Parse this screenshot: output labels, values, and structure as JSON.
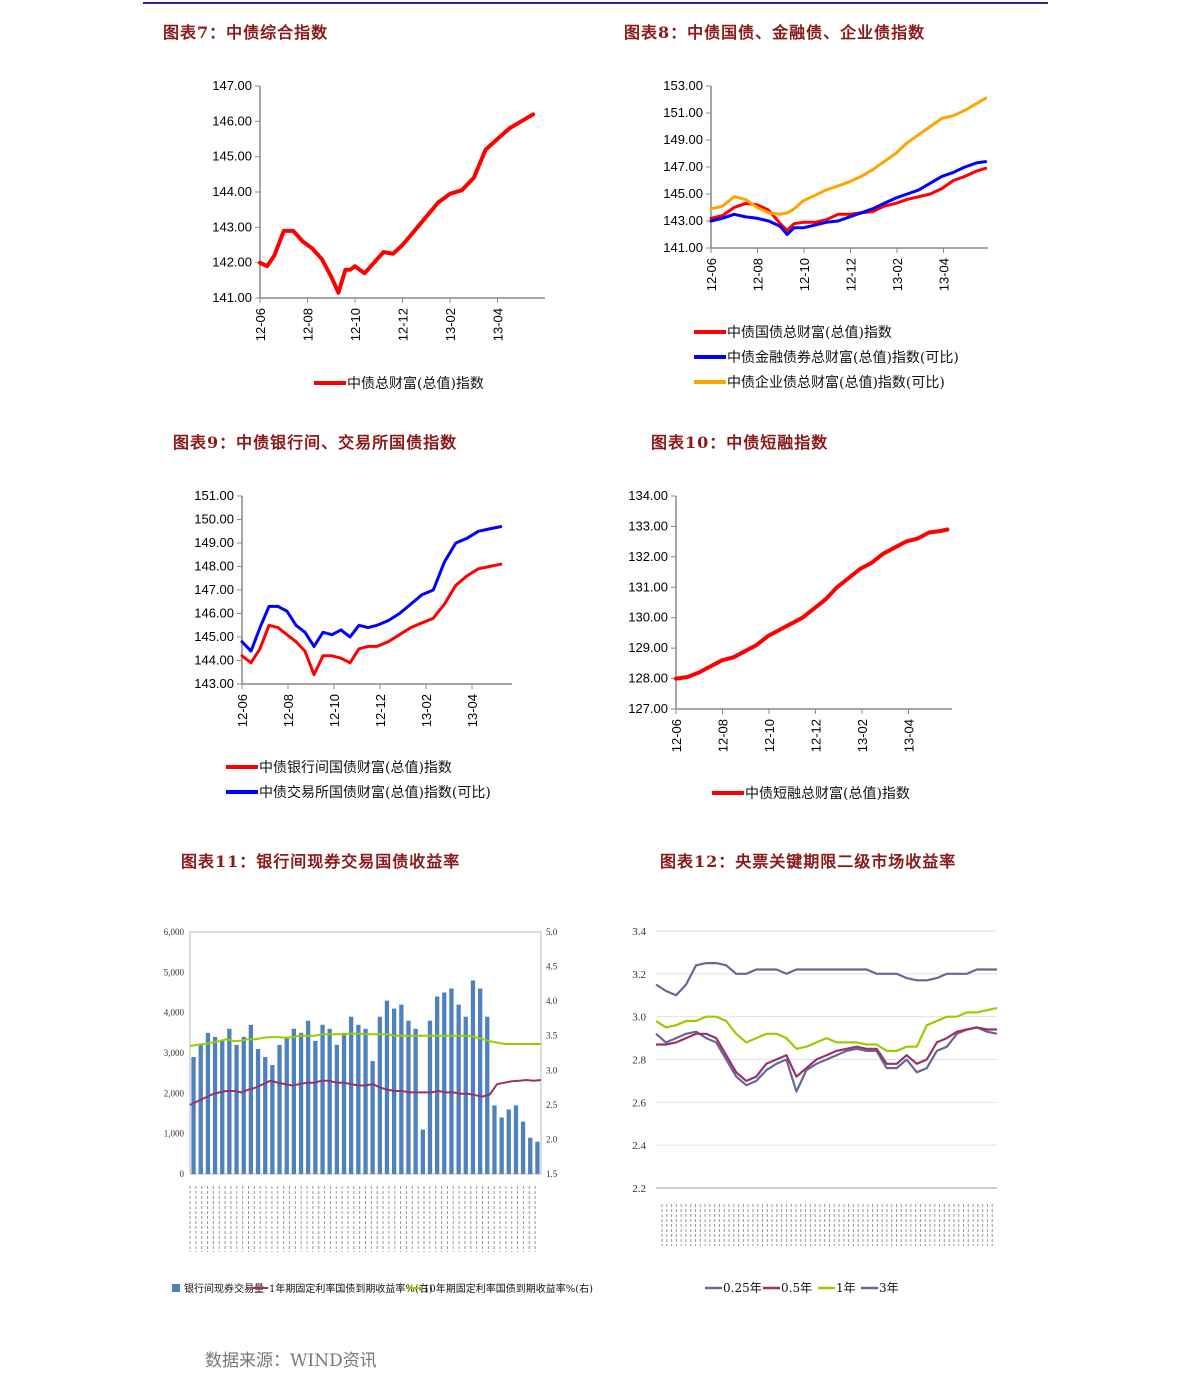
{
  "titles": {
    "c7": "图表7：中债综合指数",
    "c8": "图表8：中债国债、金融债、企业债指数",
    "c9": "图表9：中债银行间、交易所国债指数",
    "c10": "图表10：中债短融指数",
    "c11": "图表11：银行间现券交易国债收益率",
    "c12": "图表12：央票关键期限二级市场收益率"
  },
  "source": "数据来源：WIND资讯",
  "colors": {
    "red": "#ff0000",
    "blue": "#0000ff",
    "orange": "#ffa500",
    "bar": "#4f81bd",
    "maroon": "#993366",
    "lime": "#99cc00",
    "navy": "#666699",
    "title": "#8b1a1a"
  },
  "chart_data": [
    {
      "id": "c7",
      "type": "line",
      "title": "图表7：中债综合指数",
      "x_ticks": [
        "12-06",
        "12-08",
        "12-10",
        "12-12",
        "13-02",
        "13-04"
      ],
      "y_ticks": [
        "141.00",
        "142.00",
        "143.00",
        "144.00",
        "145.00",
        "146.00",
        "147.00"
      ],
      "ylim": [
        141,
        147
      ],
      "series": [
        {
          "name": "中债总财富(总值)指数",
          "color": "#ff0000",
          "x": [
            0.0,
            0.3,
            0.6,
            1.0,
            1.4,
            1.8,
            2.2,
            2.6,
            3.0,
            3.3,
            3.6,
            3.8,
            4.0,
            4.4,
            4.8,
            5.2,
            5.6,
            6.0,
            6.5,
            7.0,
            7.5,
            8.0,
            8.5,
            9.0,
            9.5,
            10.0,
            10.5,
            11.0,
            11.5
          ],
          "values": [
            142.0,
            141.9,
            142.2,
            142.9,
            142.9,
            142.6,
            142.4,
            142.1,
            141.6,
            141.15,
            141.8,
            141.8,
            141.9,
            141.7,
            142.0,
            142.3,
            142.25,
            142.5,
            142.9,
            143.3,
            143.7,
            143.95,
            144.05,
            144.4,
            145.2,
            145.5,
            145.8,
            146.0,
            146.2
          ]
        }
      ]
    },
    {
      "id": "c8",
      "type": "line",
      "title": "图表8：中债国债、金融债、企业债指数",
      "x_ticks": [
        "12-06",
        "12-08",
        "12-10",
        "12-12",
        "13-02",
        "13-04"
      ],
      "y_ticks": [
        "141.00",
        "143.00",
        "145.00",
        "147.00",
        "149.00",
        "151.00",
        "153.00"
      ],
      "ylim": [
        141,
        153
      ],
      "series": [
        {
          "name": "中债国债总财富(总值)指数",
          "color": "#ff0000",
          "x": [
            0,
            0.5,
            1,
            1.5,
            2,
            2.5,
            3,
            3.3,
            3.6,
            4,
            4.5,
            5,
            5.5,
            6,
            6.5,
            7,
            7.5,
            8,
            8.5,
            9,
            9.5,
            10,
            10.5,
            11,
            11.5,
            11.9
          ],
          "values": [
            143.2,
            143.4,
            144.0,
            144.3,
            144.2,
            143.8,
            142.8,
            142.3,
            142.8,
            142.9,
            142.9,
            143.1,
            143.5,
            143.5,
            143.6,
            143.7,
            144.1,
            144.3,
            144.6,
            144.8,
            145.0,
            145.4,
            146.0,
            146.3,
            146.7,
            146.9
          ]
        },
        {
          "name": "中债金融债券总财富(总值)指数(可比)",
          "color": "#0000ff",
          "x": [
            0,
            0.5,
            1,
            1.5,
            2,
            2.5,
            3,
            3.3,
            3.6,
            4,
            4.5,
            5,
            5.5,
            6,
            6.5,
            7,
            7.5,
            8,
            8.5,
            9,
            9.5,
            10,
            10.5,
            11,
            11.5,
            11.9
          ],
          "values": [
            143.0,
            143.2,
            143.5,
            143.3,
            143.2,
            143.0,
            142.6,
            142.0,
            142.5,
            142.5,
            142.7,
            142.9,
            143.0,
            143.3,
            143.6,
            143.9,
            144.3,
            144.7,
            145.0,
            145.3,
            145.8,
            146.3,
            146.6,
            147.0,
            147.3,
            147.4
          ]
        },
        {
          "name": "中债企业债总财富(总值)指数(可比)",
          "color": "#ffa500",
          "x": [
            0,
            0.5,
            1,
            1.5,
            2,
            2.5,
            3,
            3.3,
            3.6,
            4,
            4.5,
            5,
            5.5,
            6,
            6.5,
            7,
            7.5,
            8,
            8.5,
            9,
            9.5,
            10,
            10.5,
            11,
            11.5,
            11.9
          ],
          "values": [
            143.9,
            144.1,
            144.8,
            144.6,
            144.0,
            143.6,
            143.5,
            143.6,
            143.9,
            144.5,
            144.9,
            145.3,
            145.6,
            145.9,
            146.3,
            146.8,
            147.4,
            148.0,
            148.8,
            149.4,
            150.0,
            150.6,
            150.8,
            151.2,
            151.7,
            152.1
          ]
        }
      ]
    },
    {
      "id": "c9",
      "type": "line",
      "title": "图表9：中债银行间、交易所国债指数",
      "x_ticks": [
        "12-06",
        "12-08",
        "12-10",
        "12-12",
        "13-02",
        "13-04"
      ],
      "y_ticks": [
        "143.00",
        "144.00",
        "145.00",
        "146.00",
        "147.00",
        "148.00",
        "149.00",
        "150.00",
        "151.00"
      ],
      "ylim": [
        143,
        151
      ],
      "series": [
        {
          "name": "中债银行间国债财富(总值)指数",
          "color": "#ff0000",
          "x": [
            0,
            0.4,
            0.8,
            1.2,
            1.6,
            2.0,
            2.4,
            2.8,
            3.2,
            3.6,
            4.0,
            4.4,
            4.8,
            5.2,
            5.6,
            6.0,
            6.5,
            7.0,
            7.5,
            8.0,
            8.5,
            9.0,
            9.5,
            10.0,
            10.5,
            11.0,
            11.5
          ],
          "values": [
            144.2,
            143.9,
            144.5,
            145.5,
            145.4,
            145.1,
            144.8,
            144.4,
            143.4,
            144.2,
            144.2,
            144.1,
            143.9,
            144.5,
            144.6,
            144.6,
            144.8,
            145.1,
            145.4,
            145.6,
            145.8,
            146.4,
            147.2,
            147.6,
            147.9,
            148.0,
            148.1
          ]
        },
        {
          "name": "中债交易所国债财富(总值)指数(可比)",
          "color": "#0000ff",
          "x": [
            0,
            0.4,
            0.8,
            1.2,
            1.6,
            2.0,
            2.4,
            2.8,
            3.2,
            3.6,
            4.0,
            4.4,
            4.8,
            5.2,
            5.6,
            6.0,
            6.5,
            7.0,
            7.5,
            8.0,
            8.5,
            9.0,
            9.5,
            10.0,
            10.5,
            11.0,
            11.5
          ],
          "values": [
            144.8,
            144.4,
            145.4,
            146.3,
            146.3,
            146.1,
            145.5,
            145.2,
            144.6,
            145.2,
            145.1,
            145.3,
            145.0,
            145.5,
            145.4,
            145.5,
            145.7,
            146.0,
            146.4,
            146.8,
            147.0,
            148.2,
            149.0,
            149.2,
            149.5,
            149.6,
            149.7
          ]
        }
      ]
    },
    {
      "id": "c10",
      "type": "line",
      "title": "图表10：中债短融指数",
      "x_ticks": [
        "12-06",
        "12-08",
        "12-10",
        "12-12",
        "13-02",
        "13-04"
      ],
      "y_ticks": [
        "127.00",
        "128.00",
        "129.00",
        "130.00",
        "131.00",
        "132.00",
        "133.00",
        "134.00"
      ],
      "ylim": [
        127,
        134
      ],
      "series": [
        {
          "name": "中债短融总财富(总值)指数",
          "color": "#ff0000",
          "x": [
            0,
            0.5,
            1,
            1.5,
            2,
            2.5,
            3,
            3.5,
            4,
            4.5,
            5,
            5.5,
            6,
            6.5,
            7,
            7.5,
            8,
            8.5,
            9,
            9.5,
            10,
            10.5,
            11,
            11.5,
            11.8
          ],
          "values": [
            128.0,
            128.05,
            128.2,
            128.4,
            128.6,
            128.7,
            128.9,
            129.1,
            129.4,
            129.6,
            129.8,
            130.0,
            130.3,
            130.6,
            131.0,
            131.3,
            131.6,
            131.8,
            132.1,
            132.3,
            132.5,
            132.6,
            132.8,
            132.85,
            132.9
          ]
        }
      ]
    },
    {
      "id": "c11",
      "type": "bar+line",
      "title": "图表11：银行间现券交易国债收益率",
      "y_left_ticks": [
        "0",
        "1,000",
        "2,000",
        "3,000",
        "4,000",
        "5,000",
        "6,000"
      ],
      "y_right_ticks": [
        "1.5",
        "2.0",
        "2.5",
        "3.0",
        "3.5",
        "4.0",
        "4.5",
        "5.0"
      ],
      "ylim_left": [
        0,
        6000
      ],
      "ylim_right": [
        1.5,
        5.0
      ],
      "bars": {
        "name": "银行间现券交易量",
        "color": "#4f81bd",
        "values": [
          2900,
          3200,
          3500,
          3400,
          3300,
          3600,
          3200,
          3400,
          3700,
          3100,
          2900,
          2700,
          3200,
          3400,
          3600,
          3500,
          3800,
          3300,
          3700,
          3600,
          3200,
          3500,
          3900,
          3700,
          3600,
          2800,
          3900,
          4300,
          4100,
          4200,
          3800,
          3600,
          1100,
          3800,
          4400,
          4500,
          4600,
          4200,
          3900,
          4800,
          4600,
          3900,
          1700,
          1400,
          1600,
          1700,
          1300,
          900,
          800
        ]
      },
      "series": [
        {
          "name": "1年期固定利率国债到期收益率%(右)",
          "color": "#993366",
          "values": [
            2.5,
            2.55,
            2.6,
            2.65,
            2.68,
            2.7,
            2.7,
            2.68,
            2.72,
            2.75,
            2.8,
            2.85,
            2.82,
            2.8,
            2.78,
            2.8,
            2.82,
            2.82,
            2.85,
            2.85,
            2.82,
            2.82,
            2.8,
            2.78,
            2.78,
            2.8,
            2.75,
            2.72,
            2.7,
            2.7,
            2.68,
            2.68,
            2.68,
            2.68,
            2.7,
            2.68,
            2.68,
            2.66,
            2.66,
            2.64,
            2.62,
            2.65,
            2.8,
            2.82,
            2.84,
            2.85,
            2.86,
            2.85,
            2.86
          ]
        },
        {
          "name": "10年期固定利率国债到期收益率%(右)",
          "color": "#99cc00",
          "values": [
            3.35,
            3.37,
            3.38,
            3.4,
            3.42,
            3.45,
            3.42,
            3.43,
            3.45,
            3.45,
            3.47,
            3.48,
            3.48,
            3.47,
            3.48,
            3.5,
            3.5,
            3.5,
            3.52,
            3.52,
            3.52,
            3.52,
            3.53,
            3.53,
            3.52,
            3.52,
            3.52,
            3.52,
            3.5,
            3.5,
            3.5,
            3.5,
            3.5,
            3.5,
            3.5,
            3.5,
            3.5,
            3.5,
            3.5,
            3.48,
            3.45,
            3.42,
            3.4,
            3.38,
            3.38,
            3.38,
            3.38,
            3.38,
            3.38
          ]
        }
      ]
    },
    {
      "id": "c12",
      "type": "line",
      "title": "图表12：央票关键期限二级市场收益率",
      "y_ticks": [
        "2.2",
        "2.4",
        "2.6",
        "2.8",
        "3.0",
        "3.2",
        "3.4"
      ],
      "ylim": [
        2.2,
        3.4
      ],
      "series": [
        {
          "name": "0.25年",
          "color": "#666699",
          "values": [
            2.92,
            2.88,
            2.9,
            2.92,
            2.93,
            2.9,
            2.88,
            2.8,
            2.72,
            2.68,
            2.7,
            2.75,
            2.78,
            2.8,
            2.65,
            2.75,
            2.78,
            2.8,
            2.82,
            2.84,
            2.85,
            2.84,
            2.84,
            2.76,
            2.76,
            2.8,
            2.74,
            2.76,
            2.84,
            2.86,
            2.92,
            2.94,
            2.95,
            2.93,
            2.92
          ]
        },
        {
          "name": "0.5年",
          "color": "#993366",
          "values": [
            2.87,
            2.87,
            2.88,
            2.9,
            2.92,
            2.92,
            2.9,
            2.82,
            2.74,
            2.7,
            2.72,
            2.78,
            2.8,
            2.82,
            2.72,
            2.76,
            2.8,
            2.82,
            2.84,
            2.85,
            2.86,
            2.85,
            2.85,
            2.78,
            2.78,
            2.82,
            2.78,
            2.8,
            2.88,
            2.9,
            2.93,
            2.94,
            2.95,
            2.94,
            2.94
          ]
        },
        {
          "name": "1年",
          "color": "#99cc00",
          "values": [
            2.98,
            2.95,
            2.96,
            2.98,
            2.98,
            3.0,
            3.0,
            2.98,
            2.92,
            2.88,
            2.9,
            2.92,
            2.92,
            2.9,
            2.85,
            2.86,
            2.88,
            2.9,
            2.88,
            2.88,
            2.88,
            2.87,
            2.87,
            2.84,
            2.84,
            2.86,
            2.86,
            2.96,
            2.98,
            3.0,
            3.0,
            3.02,
            3.02,
            3.03,
            3.04
          ]
        },
        {
          "name": "3年",
          "color": "#666699",
          "values": [
            3.15,
            3.12,
            3.1,
            3.15,
            3.24,
            3.25,
            3.25,
            3.24,
            3.2,
            3.2,
            3.22,
            3.22,
            3.22,
            3.2,
            3.22,
            3.22,
            3.22,
            3.22,
            3.22,
            3.22,
            3.22,
            3.22,
            3.2,
            3.2,
            3.2,
            3.18,
            3.17,
            3.17,
            3.18,
            3.2,
            3.2,
            3.2,
            3.22,
            3.22,
            3.22
          ]
        }
      ]
    }
  ]
}
